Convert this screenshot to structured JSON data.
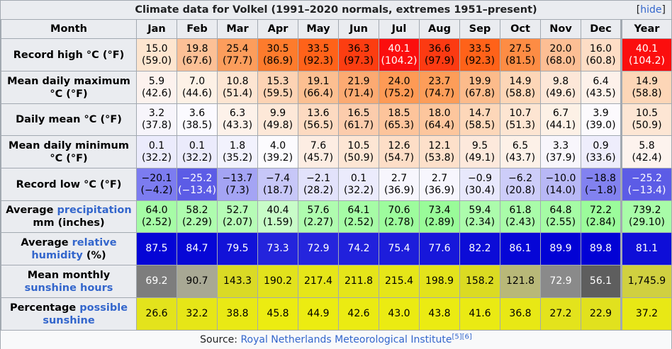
{
  "title": "Climate data for Volkel (1991–2020 normals, extremes 1951–present)",
  "hide_link": {
    "open": "[",
    "label": "hide",
    "close": "]"
  },
  "header": {
    "month_label": "Month",
    "months": [
      "Jan",
      "Feb",
      "Mar",
      "Apr",
      "May",
      "Jun",
      "Jul",
      "Aug",
      "Sep",
      "Oct",
      "Nov",
      "Dec"
    ],
    "year_label": "Year"
  },
  "rows": [
    {
      "label": "Record high °C (°F)",
      "height": 46,
      "cells": [
        {
          "v": "15.0",
          "s": "(59.0)",
          "bg": "#fde5cf"
        },
        {
          "v": "19.8",
          "s": "(67.6)",
          "bg": "#fcc096"
        },
        {
          "v": "25.4",
          "s": "(77.7)",
          "bg": "#fc9d5c"
        },
        {
          "v": "30.5",
          "s": "(86.9)",
          "bg": "#fd7b2c"
        },
        {
          "v": "33.5",
          "s": "(92.3)",
          "bg": "#ff6219"
        },
        {
          "v": "36.3",
          "s": "(97.3)",
          "bg": "#fc3d11"
        },
        {
          "v": "40.1",
          "s": "(104.2)",
          "bg": "#fb0e0e",
          "fg": "#ffffff"
        },
        {
          "v": "36.6",
          "s": "(97.9)",
          "bg": "#fc3a12"
        },
        {
          "v": "33.5",
          "s": "(92.3)",
          "bg": "#ff6219"
        },
        {
          "v": "27.5",
          "s": "(81.5)",
          "bg": "#fd8c44"
        },
        {
          "v": "20.0",
          "s": "(68.0)",
          "bg": "#fcbe94"
        },
        {
          "v": "16.0",
          "s": "(60.8)",
          "bg": "#fdddc5"
        },
        {
          "v": "40.1",
          "s": "(104.2)",
          "bg": "#fb0e0e",
          "fg": "#ffffff"
        }
      ]
    },
    {
      "label": "Mean daily maximum °C (°F)",
      "height": 46,
      "cells": [
        {
          "v": "5.9",
          "s": "(42.6)",
          "bg": "#fcf2ee"
        },
        {
          "v": "7.0",
          "s": "(44.6)",
          "bg": "#fdf1e6"
        },
        {
          "v": "10.8",
          "s": "(51.4)",
          "bg": "#fde5d2"
        },
        {
          "v": "15.3",
          "s": "(59.5)",
          "bg": "#fdd3b4"
        },
        {
          "v": "19.1",
          "s": "(66.4)",
          "bg": "#fcbf91"
        },
        {
          "v": "21.9",
          "s": "(71.4)",
          "bg": "#fcaa72"
        },
        {
          "v": "24.0",
          "s": "(75.2)",
          "bg": "#fe9a55"
        },
        {
          "v": "23.7",
          "s": "(74.7)",
          "bg": "#fd9d59"
        },
        {
          "v": "19.9",
          "s": "(67.8)",
          "bg": "#fcbb8b"
        },
        {
          "v": "14.9",
          "s": "(58.8)",
          "bg": "#fdd6b7"
        },
        {
          "v": "9.8",
          "s": "(49.6)",
          "bg": "#fde7d8"
        },
        {
          "v": "6.4",
          "s": "(43.5)",
          "bg": "#fdf1ea"
        },
        {
          "v": "14.9",
          "s": "(58.8)",
          "bg": "#fdd6b7"
        }
      ]
    },
    {
      "label": "Daily mean °C (°F)",
      "height": 45,
      "cells": [
        {
          "v": "3.2",
          "s": "(37.8)",
          "bg": "#f7f5fb"
        },
        {
          "v": "3.6",
          "s": "(38.5)",
          "bg": "#fbfaff"
        },
        {
          "v": "6.3",
          "s": "(43.3)",
          "bg": "#fdf2ea"
        },
        {
          "v": "9.9",
          "s": "(49.8)",
          "bg": "#fde8d8"
        },
        {
          "v": "13.6",
          "s": "(56.5)",
          "bg": "#fddac1"
        },
        {
          "v": "16.5",
          "s": "(61.7)",
          "bg": "#fcccac"
        },
        {
          "v": "18.5",
          "s": "(65.3)",
          "bg": "#fdc49b"
        },
        {
          "v": "18.0",
          "s": "(64.4)",
          "bg": "#fdc69d"
        },
        {
          "v": "14.7",
          "s": "(58.5)",
          "bg": "#fdd7b9"
        },
        {
          "v": "10.7",
          "s": "(51.3)",
          "bg": "#fde5d2"
        },
        {
          "v": "6.7",
          "s": "(44.1)",
          "bg": "#fdf1e6"
        },
        {
          "v": "3.9",
          "s": "(39.0)",
          "bg": "#fcfafd"
        },
        {
          "v": "10.5",
          "s": "(50.9)",
          "bg": "#fde6d4"
        }
      ]
    },
    {
      "label": "Mean daily minimum °C (°F)",
      "height": 46,
      "cells": [
        {
          "v": "0.1",
          "s": "(32.2)",
          "bg": "#ebebfc"
        },
        {
          "v": "0.1",
          "s": "(32.2)",
          "bg": "#ebebfc"
        },
        {
          "v": "1.8",
          "s": "(35.2)",
          "bg": "#f2f2fd"
        },
        {
          "v": "4.0",
          "s": "(39.2)",
          "bg": "#fcfbfe"
        },
        {
          "v": "7.6",
          "s": "(45.7)",
          "bg": "#fdede3"
        },
        {
          "v": "10.5",
          "s": "(50.9)",
          "bg": "#fde6d4"
        },
        {
          "v": "12.6",
          "s": "(54.7)",
          "bg": "#fddec7"
        },
        {
          "v": "12.1",
          "s": "(53.8)",
          "bg": "#fde0ca"
        },
        {
          "v": "9.5",
          "s": "(49.1)",
          "bg": "#fde9dc"
        },
        {
          "v": "6.5",
          "s": "(43.7)",
          "bg": "#fdf1e8"
        },
        {
          "v": "3.3",
          "s": "(37.9)",
          "bg": "#f8f6fc"
        },
        {
          "v": "0.9",
          "s": "(33.6)",
          "bg": "#eeedfc"
        },
        {
          "v": "5.8",
          "s": "(42.4)",
          "bg": "#fdf3ee"
        }
      ]
    },
    {
      "label": "Record low °C (°F)",
      "height": 46,
      "cells": [
        {
          "v": "−20.1",
          "s": "(−4.2)",
          "bg": "#7c7cf0"
        },
        {
          "v": "−25.2",
          "s": "(−13.4)",
          "bg": "#5c5ce6",
          "fg": "#ffffff"
        },
        {
          "v": "−13.7",
          "s": "(7.3)",
          "bg": "#a4a4f4"
        },
        {
          "v": "−7.4",
          "s": "(18.7)",
          "bg": "#c7c7f8"
        },
        {
          "v": "−2.1",
          "s": "(28.2)",
          "bg": "#e2e2fb"
        },
        {
          "v": "0.1",
          "s": "(32.2)",
          "bg": "#ebebfc"
        },
        {
          "v": "2.7",
          "s": "(36.9)",
          "bg": "#f7f6fd"
        },
        {
          "v": "2.7",
          "s": "(36.9)",
          "bg": "#f7f6fd"
        },
        {
          "v": "−0.9",
          "s": "(30.4)",
          "bg": "#e8e8fc"
        },
        {
          "v": "−6.2",
          "s": "(20.8)",
          "bg": "#cdcdf9"
        },
        {
          "v": "−10.0",
          "s": "(14.0)",
          "bg": "#b8b8f6"
        },
        {
          "v": "−18.8",
          "s": "(−1.8)",
          "bg": "#8282f0"
        },
        {
          "v": "−25.2",
          "s": "(−13.4)",
          "bg": "#5c5ce6",
          "fg": "#ffffff"
        }
      ]
    },
    {
      "label_parts": [
        {
          "t": "Average "
        },
        {
          "t": "precipitation",
          "link": true
        },
        {
          "t": " mm (inches)"
        }
      ],
      "height": 45,
      "cells": [
        {
          "v": "64.0",
          "s": "(2.52)",
          "bg": "#a6fca6"
        },
        {
          "v": "58.2",
          "s": "(2.29)",
          "bg": "#aefcae"
        },
        {
          "v": "52.7",
          "s": "(2.07)",
          "bg": "#b6fcb6"
        },
        {
          "v": "40.4",
          "s": "(1.59)",
          "bg": "#c8fcc8"
        },
        {
          "v": "57.6",
          "s": "(2.27)",
          "bg": "#affcaf"
        },
        {
          "v": "64.1",
          "s": "(2.52)",
          "bg": "#a6fca6"
        },
        {
          "v": "70.6",
          "s": "(2.78)",
          "bg": "#9dfc9d"
        },
        {
          "v": "73.4",
          "s": "(2.89)",
          "bg": "#99fc99"
        },
        {
          "v": "59.4",
          "s": "(2.34)",
          "bg": "#acfcac"
        },
        {
          "v": "61.8",
          "s": "(2.43)",
          "bg": "#a9fca9"
        },
        {
          "v": "64.8",
          "s": "(2.55)",
          "bg": "#a5fca5"
        },
        {
          "v": "72.2",
          "s": "(2.84)",
          "bg": "#9bfc9b"
        },
        {
          "v": "739.2",
          "s": "(29.10)",
          "bg": "#a8fca8"
        }
      ]
    },
    {
      "label_parts": [
        {
          "t": "Average "
        },
        {
          "t": "relative humidity",
          "link": true
        },
        {
          "t": " (%)"
        }
      ],
      "height": 46,
      "cells": [
        {
          "v": "87.5",
          "bg": "#0505d6",
          "fg": "#ffffff"
        },
        {
          "v": "84.7",
          "bg": "#0707d6",
          "fg": "#ffffff"
        },
        {
          "v": "79.5",
          "bg": "#1212d8",
          "fg": "#ffffff"
        },
        {
          "v": "73.3",
          "bg": "#2424dc",
          "fg": "#ffffff"
        },
        {
          "v": "72.9",
          "bg": "#2525dd",
          "fg": "#ffffff"
        },
        {
          "v": "74.2",
          "bg": "#2121dc",
          "fg": "#ffffff"
        },
        {
          "v": "75.4",
          "bg": "#1d1ddb",
          "fg": "#ffffff"
        },
        {
          "v": "77.6",
          "bg": "#1717da",
          "fg": "#ffffff"
        },
        {
          "v": "82.2",
          "bg": "#0c0cd7",
          "fg": "#ffffff"
        },
        {
          "v": "86.1",
          "bg": "#0606d6",
          "fg": "#ffffff"
        },
        {
          "v": "89.9",
          "bg": "#0202d5",
          "fg": "#ffffff"
        },
        {
          "v": "89.8",
          "bg": "#0202d5",
          "fg": "#ffffff"
        },
        {
          "v": "81.1",
          "bg": "#0e0ed8",
          "fg": "#ffffff"
        }
      ]
    },
    {
      "label_parts": [
        {
          "t": "Mean monthly "
        },
        {
          "t": "sunshine hours",
          "link": true
        }
      ],
      "height": 46,
      "cells": [
        {
          "v": "69.2",
          "bg": "#7d7d7d",
          "fg": "#ffffff"
        },
        {
          "v": "90.7",
          "bg": "#a8a894"
        },
        {
          "v": "143.3",
          "bg": "#dada25"
        },
        {
          "v": "190.2",
          "bg": "#e2e21c"
        },
        {
          "v": "217.4",
          "bg": "#e6e618"
        },
        {
          "v": "211.8",
          "bg": "#e5e519"
        },
        {
          "v": "215.4",
          "bg": "#e6e618"
        },
        {
          "v": "198.9",
          "bg": "#e3e31b"
        },
        {
          "v": "158.2",
          "bg": "#dbdb22"
        },
        {
          "v": "121.8",
          "bg": "#b8b878"
        },
        {
          "v": "72.9",
          "bg": "#8a8a8a",
          "fg": "#ffffff"
        },
        {
          "v": "56.1",
          "bg": "#5e5e5e",
          "fg": "#ffffff"
        },
        {
          "v": "1,745.9",
          "bg": "#d0d040"
        }
      ]
    },
    {
      "label_parts": [
        {
          "t": "Percentage "
        },
        {
          "t": "possible sunshine",
          "link": true
        }
      ],
      "height": 46,
      "cells": [
        {
          "v": "26.6",
          "bg": "#e3e31c"
        },
        {
          "v": "32.2",
          "bg": "#e6e617"
        },
        {
          "v": "38.8",
          "bg": "#e9e914"
        },
        {
          "v": "45.8",
          "bg": "#ecec11"
        },
        {
          "v": "44.9",
          "bg": "#ecec11"
        },
        {
          "v": "42.6",
          "bg": "#ebeb12"
        },
        {
          "v": "43.0",
          "bg": "#ebeb12"
        },
        {
          "v": "43.8",
          "bg": "#ebeb12"
        },
        {
          "v": "41.6",
          "bg": "#eaea13"
        },
        {
          "v": "36.8",
          "bg": "#e8e815"
        },
        {
          "v": "27.2",
          "bg": "#e3e31c"
        },
        {
          "v": "22.9",
          "bg": "#e1e11e"
        },
        {
          "v": "37.2",
          "bg": "#e8e815"
        }
      ]
    }
  ],
  "source": {
    "prefix": "Source: ",
    "link": "Royal Netherlands Meteorological Institute",
    "refs": [
      "[5]",
      "[6]"
    ]
  }
}
